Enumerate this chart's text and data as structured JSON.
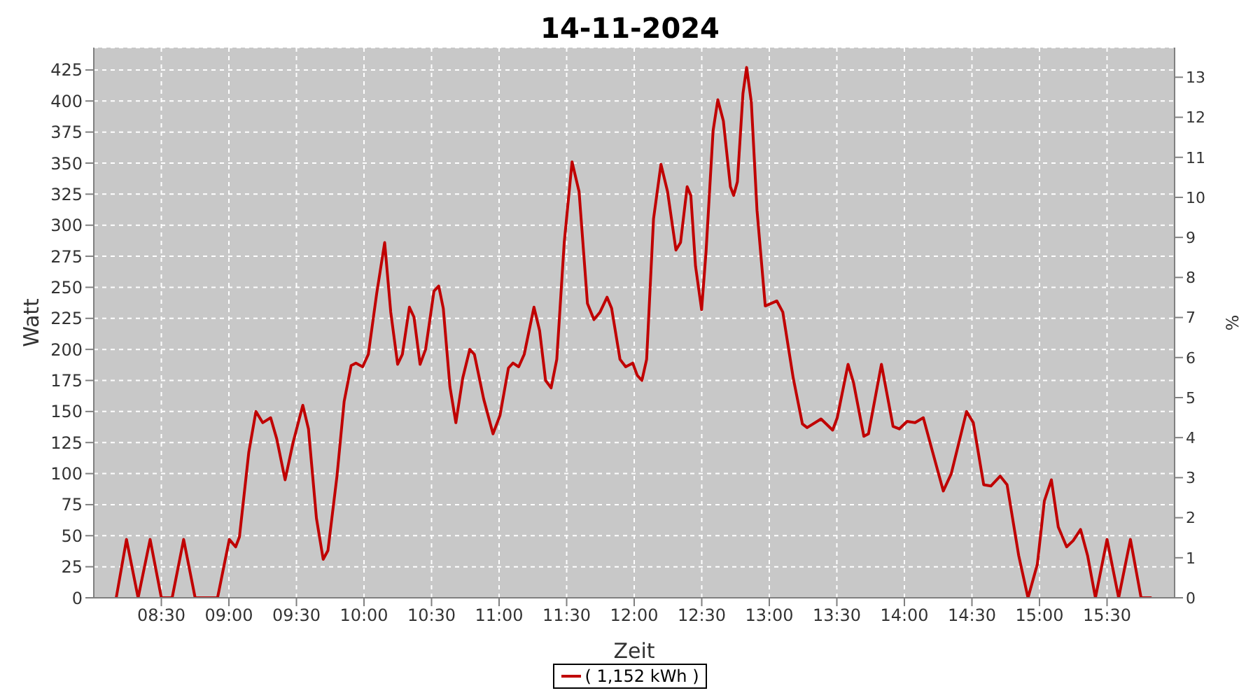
{
  "chart_data": {
    "type": "line",
    "title": "14-11-2024",
    "xlabel": "Zeit",
    "ylabel": "Watt",
    "y2label": "%",
    "xlim": [
      8,
      16
    ],
    "xticks": [
      {
        "value": 8.5,
        "label": "08:30"
      },
      {
        "value": 9,
        "label": "09:00"
      },
      {
        "value": 9.5,
        "label": "09:30"
      },
      {
        "value": 10,
        "label": "10:00"
      },
      {
        "value": 10.5,
        "label": "10:30"
      },
      {
        "value": 11,
        "label": "11:00"
      },
      {
        "value": 11.5,
        "label": "11:30"
      },
      {
        "value": 12,
        "label": "12:00"
      },
      {
        "value": 12.5,
        "label": "12:30"
      },
      {
        "value": 13,
        "label": "13:00"
      },
      {
        "value": 13.5,
        "label": "13:30"
      },
      {
        "value": 14,
        "label": "14:00"
      },
      {
        "value": 14.5,
        "label": "14:30"
      },
      {
        "value": 15,
        "label": "15:00"
      },
      {
        "value": 15.5,
        "label": "15:30"
      }
    ],
    "ylim": [
      0,
      443
    ],
    "yticks": [
      0,
      25,
      50,
      75,
      100,
      125,
      150,
      175,
      200,
      225,
      250,
      275,
      300,
      325,
      350,
      375,
      400,
      425
    ],
    "y2lim": [
      0,
      13.74
    ],
    "y2ticks": [
      0,
      1,
      2,
      3,
      4,
      5,
      6,
      7,
      8,
      9,
      10,
      11,
      12,
      13
    ],
    "grid": true,
    "legend": "bottom",
    "marker": "none",
    "line_style": "solid",
    "series": [
      {
        "name": "( 1,152 kWh )",
        "color": "#c00000",
        "x": [
          8.166,
          8.242,
          8.328,
          8.417,
          8.5,
          8.58,
          8.665,
          8.75,
          8.83,
          8.916,
          9.003,
          9.05,
          9.078,
          9.147,
          9.2,
          9.25,
          9.309,
          9.354,
          9.416,
          9.475,
          9.547,
          9.589,
          9.648,
          9.698,
          9.733,
          9.8,
          9.853,
          9.905,
          9.94,
          9.99,
          10.032,
          10.094,
          10.153,
          10.198,
          10.249,
          10.284,
          10.336,
          10.37,
          10.415,
          10.456,
          10.518,
          10.553,
          10.587,
          10.636,
          10.68,
          10.731,
          10.783,
          10.817,
          10.886,
          10.955,
          11.007,
          11.069,
          11.103,
          11.145,
          11.186,
          11.258,
          11.3,
          11.344,
          11.385,
          11.427,
          11.482,
          11.54,
          11.592,
          11.654,
          11.702,
          11.747,
          11.799,
          11.833,
          11.895,
          11.937,
          11.989,
          12.023,
          12.057,
          12.092,
          12.143,
          12.198,
          12.247,
          12.309,
          12.343,
          12.392,
          12.419,
          12.454,
          12.499,
          12.532,
          12.584,
          12.619,
          12.66,
          12.712,
          12.736,
          12.764,
          12.805,
          12.832,
          12.867,
          12.909,
          12.97,
          13.056,
          13.1,
          13.177,
          13.245,
          13.28,
          13.383,
          13.469,
          13.503,
          13.583,
          13.624,
          13.7,
          13.734,
          13.83,
          13.916,
          13.962,
          14.02,
          14.079,
          14.14,
          14.21,
          14.288,
          14.347,
          14.46,
          14.51,
          14.587,
          14.64,
          14.709,
          14.76,
          14.846,
          14.915,
          14.984,
          15.036,
          15.088,
          15.139,
          15.201,
          15.249,
          15.304,
          15.356,
          15.414,
          15.5,
          15.586,
          15.673,
          15.752,
          15.83
        ],
        "values": [
          0,
          47,
          0,
          47,
          0,
          0,
          47,
          0,
          0,
          0,
          47,
          41,
          49,
          117,
          150,
          141,
          145,
          128,
          95,
          125,
          155,
          136,
          64,
          31,
          38,
          98,
          158,
          187,
          189,
          186,
          196,
          245,
          286,
          230,
          188,
          196,
          234,
          226,
          188,
          200,
          247,
          251,
          233,
          170,
          141,
          177,
          200,
          196,
          160,
          132,
          147,
          185,
          189,
          186,
          196,
          234,
          215,
          175,
          169,
          192,
          286,
          351,
          327,
          237,
          224,
          230,
          242,
          233,
          192,
          186,
          189,
          179,
          175,
          192,
          305,
          349,
          327,
          280,
          286,
          331,
          324,
          267,
          232,
          279,
          376,
          401,
          384,
          331,
          324,
          335,
          406,
          427,
          399,
          312,
          235,
          239,
          230,
          177,
          140,
          137,
          144,
          135,
          145,
          188,
          173,
          130,
          132,
          188,
          138,
          136,
          142,
          141,
          145,
          117,
          86,
          100,
          150,
          141,
          91,
          90,
          98,
          91,
          34,
          0,
          27,
          78,
          95,
          57,
          41,
          46,
          55,
          34,
          0,
          47,
          0,
          47,
          0,
          0
        ]
      }
    ]
  }
}
